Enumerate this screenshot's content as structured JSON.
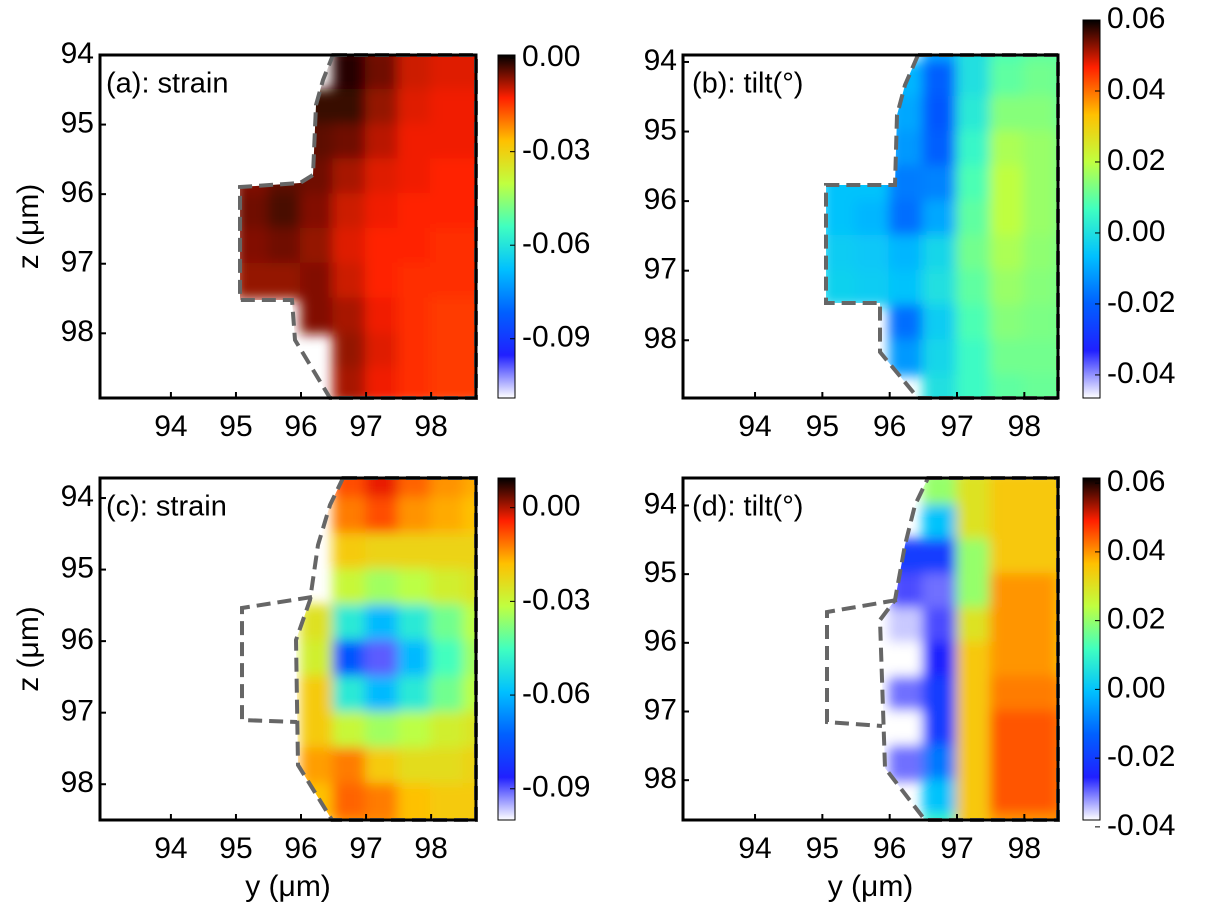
{
  "chart_data": [
    {
      "type": "heatmap",
      "title": "(a): strain",
      "ylabel": "z (μm)",
      "x": [
        95.25,
        95.75,
        96.25,
        96.75,
        97.25,
        97.75,
        98.25,
        98.75
      ],
      "y": [
        93.75,
        94.25,
        94.75,
        95.25,
        95.75,
        96.25,
        96.75,
        97.25,
        97.75,
        98.25,
        98.75
      ],
      "z": [
        [
          null,
          null,
          null,
          -0.002,
          -0.006,
          -0.01,
          -0.011,
          -0.011
        ],
        [
          null,
          null,
          null,
          -0.001,
          -0.005,
          -0.01,
          -0.011,
          -0.011
        ],
        [
          null,
          null,
          -0.002,
          -0.002,
          -0.007,
          -0.011,
          -0.012,
          -0.012
        ],
        [
          null,
          null,
          -0.004,
          -0.005,
          -0.009,
          -0.012,
          -0.012,
          -0.012
        ],
        [
          -0.006,
          -0.004,
          -0.005,
          -0.008,
          -0.011,
          -0.012,
          -0.013,
          -0.013
        ],
        [
          -0.005,
          -0.003,
          -0.006,
          -0.01,
          -0.012,
          -0.013,
          -0.013,
          -0.013
        ],
        [
          -0.006,
          -0.005,
          -0.007,
          -0.011,
          -0.013,
          -0.013,
          -0.014,
          -0.014
        ],
        [
          -0.007,
          -0.007,
          -0.006,
          -0.01,
          -0.013,
          -0.014,
          -0.014,
          -0.014
        ],
        [
          null,
          null,
          -0.006,
          -0.008,
          -0.012,
          -0.014,
          -0.015,
          -0.015
        ],
        [
          null,
          null,
          null,
          -0.007,
          -0.011,
          -0.014,
          -0.015,
          -0.015
        ],
        [
          null,
          null,
          null,
          -0.008,
          -0.012,
          -0.014,
          -0.015,
          -0.015
        ]
      ],
      "xlim": [
        92.91,
        98.69
      ],
      "ylim": [
        94.0,
        98.93
      ],
      "xticks": [
        94,
        95,
        96,
        97,
        98
      ],
      "yticks": [
        94,
        95,
        96,
        97,
        98
      ],
      "clim": [
        -0.109,
        0.001
      ],
      "cticks": [
        {
          "value": 0,
          "label": "0.00"
        },
        -0.03,
        -0.06,
        -0.09
      ],
      "colormap": [
        "#ffffff",
        "#2020ff",
        "#0060ff",
        "#00c0ff",
        "#40ffc0",
        "#c0ff40",
        "#ffc000",
        "#ff2000",
        "#000000"
      ]
    },
    {
      "type": "heatmap",
      "title": "(b): tilt(°)",
      "x": [
        95.25,
        95.75,
        96.25,
        96.75,
        97.25,
        97.75,
        98.25,
        98.75
      ],
      "y": [
        93.75,
        94.25,
        94.75,
        95.25,
        95.75,
        96.25,
        96.75,
        97.25,
        97.75,
        98.25,
        98.75
      ],
      "z": [
        [
          null,
          null,
          null,
          -0.01,
          0.0,
          0.008,
          0.01,
          0.01
        ],
        [
          null,
          null,
          -0.008,
          -0.02,
          0.0,
          0.01,
          0.012,
          0.01
        ],
        [
          null,
          null,
          -0.01,
          -0.022,
          0.002,
          0.014,
          0.014,
          0.01
        ],
        [
          null,
          null,
          -0.012,
          -0.02,
          0.005,
          0.018,
          0.016,
          0.012
        ],
        [
          -0.006,
          -0.006,
          -0.016,
          -0.015,
          0.008,
          0.02,
          0.016,
          0.012
        ],
        [
          -0.006,
          -0.008,
          -0.018,
          -0.01,
          0.01,
          0.02,
          0.016,
          0.012
        ],
        [
          -0.004,
          -0.005,
          -0.008,
          -0.002,
          0.012,
          0.018,
          0.015,
          0.012
        ],
        [
          -0.003,
          -0.004,
          -0.006,
          0.0,
          0.01,
          0.016,
          0.014,
          0.012
        ],
        [
          null,
          null,
          -0.018,
          -0.004,
          0.008,
          0.014,
          0.013,
          0.012
        ],
        [
          null,
          null,
          -0.012,
          -0.002,
          0.006,
          0.012,
          0.012,
          0.012
        ],
        [
          null,
          null,
          null,
          0.0,
          0.006,
          0.01,
          0.011,
          0.011
        ]
      ],
      "xlim": [
        92.93,
        98.5
      ],
      "ylim": [
        93.9,
        98.83
      ],
      "xticks": [
        94,
        95,
        96,
        97,
        98
      ],
      "yticks": [
        94,
        95,
        96,
        97,
        98
      ],
      "clim": [
        -0.0465,
        0.06
      ],
      "cticks": [
        0.06,
        0.04,
        0.02,
        {
          "value": 0,
          "label": "0.00"
        },
        -0.02,
        -0.04
      ],
      "colormap": [
        "#ffffff",
        "#2020ff",
        "#0060ff",
        "#00c0ff",
        "#40ffc0",
        "#c0ff40",
        "#ffc000",
        "#ff2000",
        "#000000"
      ]
    },
    {
      "type": "heatmap",
      "title": "(c): strain",
      "xlabel": "y (μm)",
      "ylabel": "z (μm)",
      "x": [
        95.25,
        95.75,
        96.25,
        96.75,
        97.25,
        97.75,
        98.25,
        98.75
      ],
      "y": [
        93.75,
        94.25,
        94.75,
        95.25,
        95.75,
        96.25,
        96.75,
        97.25,
        97.75,
        98.25,
        98.75
      ],
      "z": [
        [
          null,
          null,
          null,
          -0.008,
          -0.003,
          -0.01,
          -0.014,
          -0.016
        ],
        [
          null,
          null,
          null,
          -0.012,
          -0.008,
          -0.014,
          -0.016,
          -0.018
        ],
        [
          null,
          null,
          null,
          -0.02,
          -0.022,
          -0.022,
          -0.022,
          -0.022
        ],
        [
          null,
          null,
          null,
          -0.03,
          -0.035,
          -0.032,
          -0.028,
          -0.026
        ],
        [
          null,
          null,
          -0.025,
          -0.05,
          -0.06,
          -0.05,
          -0.04,
          -0.032
        ],
        [
          null,
          null,
          -0.028,
          -0.075,
          -0.09,
          -0.06,
          -0.045,
          -0.035
        ],
        [
          null,
          null,
          -0.02,
          -0.05,
          -0.06,
          -0.05,
          -0.04,
          -0.032
        ],
        [
          null,
          null,
          -0.02,
          -0.03,
          -0.035,
          -0.032,
          -0.028,
          -0.026
        ],
        [
          null,
          null,
          -0.015,
          -0.012,
          -0.02,
          -0.024,
          -0.024,
          -0.022
        ],
        [
          null,
          null,
          -0.018,
          -0.01,
          -0.012,
          -0.018,
          -0.02,
          -0.02
        ],
        [
          null,
          null,
          null,
          -0.015,
          -0.014,
          -0.018,
          -0.02,
          -0.02
        ]
      ],
      "xlim": [
        92.91,
        98.69
      ],
      "ylim": [
        93.72,
        98.5
      ],
      "xticks": [
        94,
        95,
        96,
        97,
        98
      ],
      "yticks": [
        94,
        95,
        96,
        97,
        98
      ],
      "clim": [
        -0.1,
        0.0095
      ],
      "cticks": [
        {
          "value": 0,
          "label": "0.00"
        },
        -0.03,
        -0.06,
        -0.09
      ],
      "colormap": [
        "#ffffff",
        "#2020ff",
        "#0060ff",
        "#00c0ff",
        "#40ffc0",
        "#c0ff40",
        "#ffc000",
        "#ff2000",
        "#000000"
      ]
    },
    {
      "type": "heatmap",
      "title": "(d): tilt(°)",
      "xlabel": "y (μm)",
      "x": [
        95.25,
        95.75,
        96.25,
        96.75,
        97.25,
        97.75,
        98.25,
        98.75
      ],
      "y": [
        93.75,
        94.25,
        94.75,
        95.25,
        95.75,
        96.25,
        96.75,
        97.25,
        97.75,
        98.25,
        98.75
      ],
      "z": [
        [
          null,
          null,
          null,
          0.02,
          0.03,
          0.035,
          0.035,
          0.035
        ],
        [
          null,
          null,
          null,
          0.0,
          0.03,
          0.035,
          0.035,
          0.035
        ],
        [
          null,
          null,
          -0.02,
          -0.02,
          0.02,
          0.035,
          0.035,
          0.035
        ],
        [
          null,
          null,
          -0.028,
          -0.03,
          0.02,
          0.04,
          0.04,
          0.035
        ],
        [
          null,
          null,
          -0.035,
          -0.028,
          0.03,
          0.04,
          0.04,
          0.035
        ],
        [
          null,
          null,
          -0.04,
          -0.025,
          0.035,
          0.04,
          0.04,
          0.035
        ],
        [
          null,
          null,
          -0.03,
          -0.02,
          0.035,
          0.042,
          0.042,
          0.04
        ],
        [
          null,
          null,
          -0.038,
          -0.02,
          0.035,
          0.045,
          0.045,
          0.042
        ],
        [
          null,
          null,
          -0.03,
          -0.01,
          0.035,
          0.045,
          0.045,
          0.042
        ],
        [
          null,
          null,
          null,
          0.0,
          0.035,
          0.045,
          0.045,
          0.042
        ],
        [
          null,
          null,
          null,
          0.01,
          0.035,
          0.04,
          0.04,
          0.04
        ]
      ],
      "xlim": [
        92.93,
        98.5
      ],
      "ylim": [
        93.6,
        98.58
      ],
      "xticks": [
        94,
        95,
        96,
        97,
        98
      ],
      "yticks": [
        94,
        95,
        96,
        97,
        98
      ],
      "clim": [
        -0.038,
        0.0615
      ],
      "cticks": [
        0.06,
        0.04,
        0.02,
        {
          "value": 0,
          "label": "0.00"
        },
        -0.02,
        -0.04
      ],
      "colormap": [
        "#ffffff",
        "#2020ff",
        "#0060ff",
        "#00c0ff",
        "#40ffc0",
        "#c0ff40",
        "#ffc000",
        "#ff2000",
        "#000000"
      ]
    }
  ]
}
